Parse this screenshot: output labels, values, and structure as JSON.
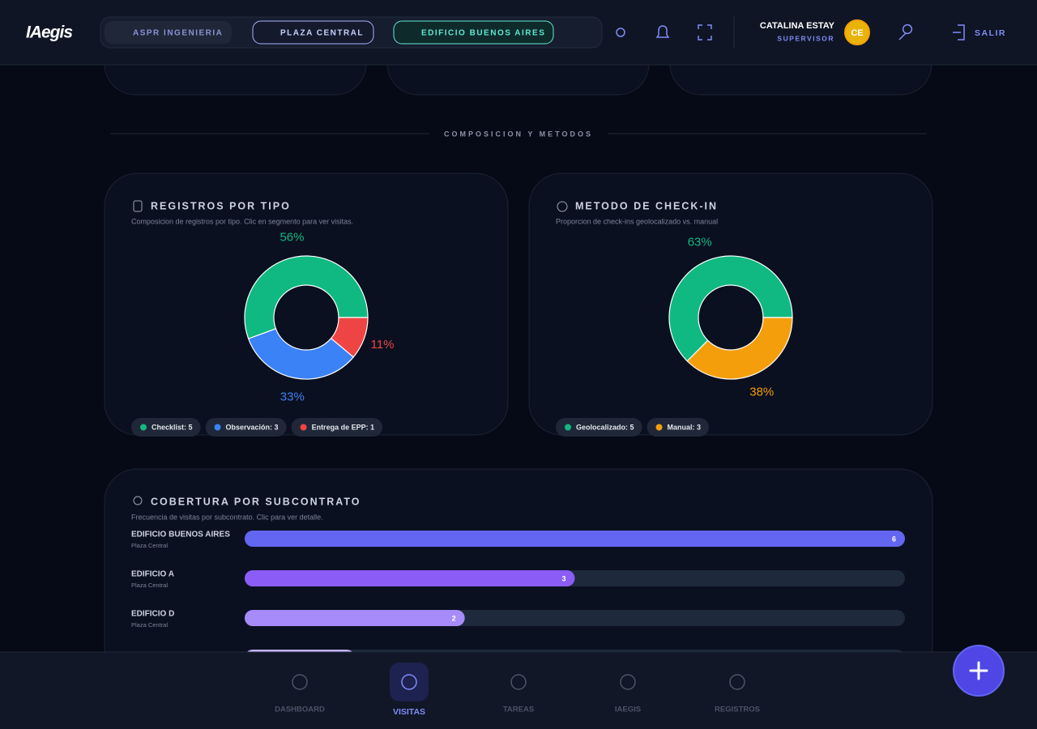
{
  "header": {
    "logo": "IAegis",
    "breadcrumbs": [
      "ASPR INGENIERIA",
      "PLAZA CENTRAL",
      "EDIFICIO BUENOS AIRES"
    ],
    "user_name": "CATALINA ESTAY",
    "user_role": "SUPERVISOR",
    "initials": "CE",
    "logout": "SALIR"
  },
  "section_title": "COMPOSICION Y METODOS",
  "registros": {
    "type": "pie",
    "title": "REGISTROS POR TIPO",
    "subtitle": "Composicion de registros por tipo. Clic en segmento para ver visitas.",
    "legend": [
      "Checklist: 5",
      "Observación: 3",
      "Entrega de EPP: 1"
    ],
    "values": [
      55.6,
      33.3,
      11.1
    ],
    "value_labels": [
      "56%",
      "33%",
      "11%"
    ],
    "colors": [
      "#10b981",
      "#3b82f6",
      "#ef4444"
    ]
  },
  "checkin": {
    "type": "pie",
    "title": "METODO DE CHECK-IN",
    "subtitle": "Proporcion de check-ins geolocalizado vs. manual",
    "legend": [
      "Geolocalizado: 5",
      "Manual: 3"
    ],
    "values": [
      62.5,
      37.5
    ],
    "value_labels": [
      "63%",
      "38%"
    ],
    "colors": [
      "#10b981",
      "#f59e0b"
    ]
  },
  "cobertura": {
    "type": "bar",
    "title": "COBERTURA POR SUBCONTRATO",
    "subtitle": "Frecuencia de visitas por subcontrato. Clic para ver detalle.",
    "categories": [
      "EDIFICIO BUENOS AIRES",
      "EDIFICIO A",
      "EDIFICIO D",
      null
    ],
    "sublabels": [
      "Plaza Central",
      "Plaza Central",
      "Plaza Central",
      null
    ],
    "values": [
      6,
      3,
      2,
      1
    ],
    "xlim": [
      0,
      6
    ],
    "colors": [
      "#6366f1",
      "#8b5cf6",
      "#a78bfa",
      "#c4b5fd"
    ]
  },
  "nav": [
    "DASHBOARD",
    "VISITAS",
    "TAREAS",
    "IAEGIS",
    "REGISTROS"
  ]
}
